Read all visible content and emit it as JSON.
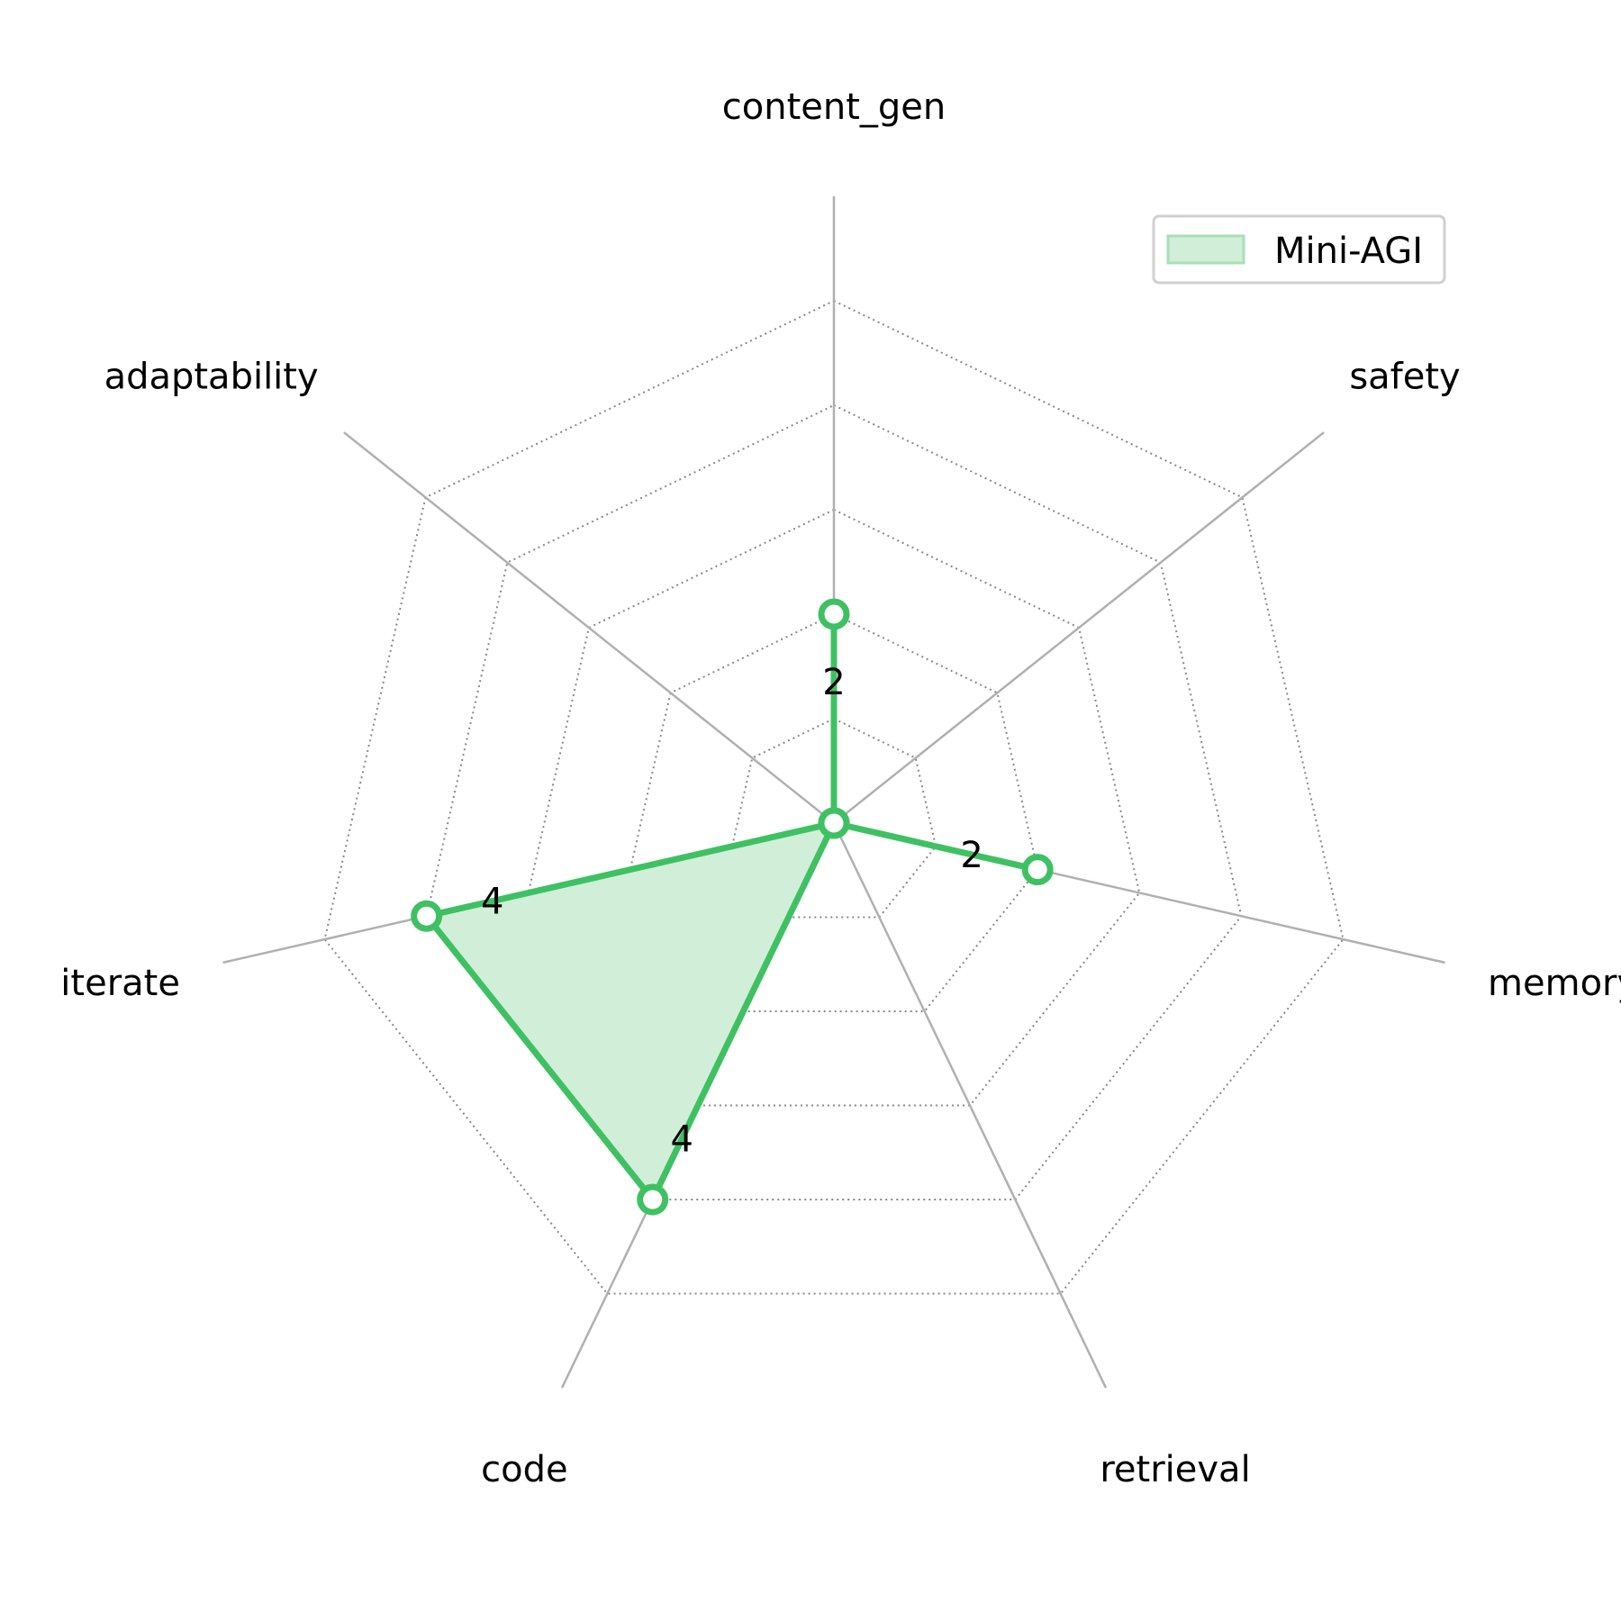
{
  "chart_data": {
    "type": "radar",
    "categories": [
      "content_gen",
      "safety",
      "memory",
      "retrieval",
      "code",
      "iterate",
      "adaptability"
    ],
    "series": [
      {
        "name": "Mini-AGI",
        "values": [
          2,
          0,
          2,
          0,
          4,
          4,
          0
        ],
        "color": "#3fc163",
        "fill_color": "#d1efd8"
      }
    ],
    "value_labels": [
      "2",
      "",
      "2",
      "",
      "4",
      "4",
      ""
    ],
    "rlim": [
      0,
      6
    ],
    "grid_rings": [
      1,
      2,
      3,
      4,
      5
    ],
    "grid_style": "dotted",
    "legend_position": "top-right"
  }
}
